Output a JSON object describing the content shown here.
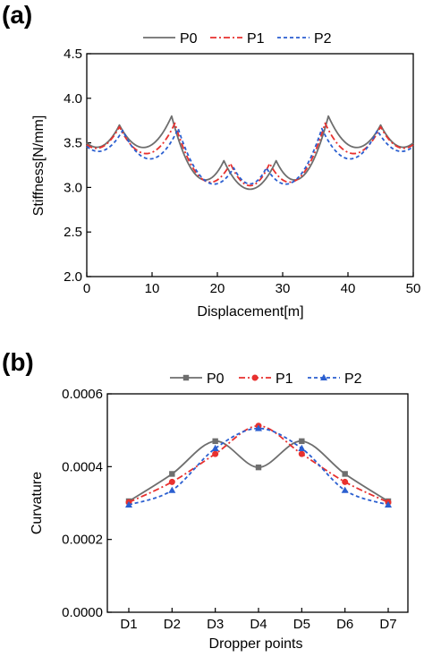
{
  "panels": [
    {
      "panel_label": "(a)",
      "legend": [
        {
          "name": "P0",
          "color": "#6e6e6e",
          "dash": "solid",
          "marker": "none"
        },
        {
          "name": "P1",
          "color": "#e8312f",
          "dash": "dashdot",
          "marker": "none"
        },
        {
          "name": "P2",
          "color": "#2b5fd0",
          "dash": "dash",
          "marker": "none"
        }
      ]
    },
    {
      "panel_label": "(b)",
      "legend": [
        {
          "name": "P0",
          "color": "#6e6e6e",
          "dash": "solid",
          "marker": "square"
        },
        {
          "name": "P1",
          "color": "#e8312f",
          "dash": "dashdot",
          "marker": "circle"
        },
        {
          "name": "P2",
          "color": "#2b5fd0",
          "dash": "dash",
          "marker": "triangle"
        }
      ]
    }
  ],
  "chart_data": [
    {
      "type": "line",
      "xlabel": "Displacement[m]",
      "ylabel": "Stiffness[N/mm]",
      "xlim": [
        0,
        50
      ],
      "ylim": [
        2.0,
        4.5
      ],
      "xticks": [
        0,
        10,
        20,
        30,
        40,
        50
      ],
      "xtick_labels": [
        "0",
        "10",
        "20",
        "30",
        "40",
        "50"
      ],
      "yticks": [
        2.0,
        2.5,
        3.0,
        3.5,
        4.0,
        4.5
      ],
      "ytick_labels": [
        "2.0",
        "2.5",
        "3.0",
        "3.5",
        "4.0",
        "4.5"
      ],
      "legend_position": "top",
      "series": [
        {
          "name": "P0",
          "color": "#6e6e6e",
          "dash": "solid",
          "knots": [
            [
              0,
              3.5
            ],
            [
              5,
              3.7
            ],
            [
              13,
              3.8
            ],
            [
              21,
              3.3
            ],
            [
              29,
              3.3
            ],
            [
              37,
              3.8
            ],
            [
              45,
              3.7
            ],
            [
              50,
              3.5
            ]
          ],
          "mins": [
            3.47,
            3.45,
            3.12,
            2.98,
            3.12,
            3.45,
            3.47
          ]
        },
        {
          "name": "P1",
          "color": "#e8312f",
          "dash": "dashdot",
          "knots": [
            [
              0,
              3.48
            ],
            [
              5,
              3.68
            ],
            [
              13.5,
              3.72
            ],
            [
              22,
              3.27
            ],
            [
              28,
              3.27
            ],
            [
              36.5,
              3.72
            ],
            [
              45,
              3.68
            ],
            [
              50,
              3.48
            ]
          ],
          "mins": [
            3.46,
            3.38,
            3.09,
            3.02,
            3.09,
            3.38,
            3.46
          ]
        },
        {
          "name": "P2",
          "color": "#2b5fd0",
          "dash": "dash",
          "knots": [
            [
              0,
              3.46
            ],
            [
              5.5,
              3.64
            ],
            [
              14,
              3.66
            ],
            [
              22.5,
              3.22
            ],
            [
              27.5,
              3.22
            ],
            [
              36,
              3.66
            ],
            [
              44.5,
              3.64
            ],
            [
              50,
              3.46
            ]
          ],
          "mins": [
            3.42,
            3.32,
            3.07,
            3.04,
            3.07,
            3.32,
            3.42
          ]
        }
      ]
    },
    {
      "type": "line",
      "xlabel": "Dropper points",
      "ylabel": "Curvature",
      "categories": [
        "D1",
        "D2",
        "D3",
        "D4",
        "D5",
        "D6",
        "D7"
      ],
      "ylim": [
        0.0,
        0.0006
      ],
      "yticks": [
        0.0,
        0.0002,
        0.0004,
        0.0006
      ],
      "ytick_labels": [
        "0.0000",
        "0.0002",
        "0.0004",
        "0.0006"
      ],
      "legend_position": "top",
      "series": [
        {
          "name": "P0",
          "color": "#6e6e6e",
          "dash": "solid",
          "marker": "square",
          "values": [
            0.000305,
            0.00038,
            0.00047,
            0.000398,
            0.00047,
            0.00038,
            0.000305
          ]
        },
        {
          "name": "P1",
          "color": "#e8312f",
          "dash": "dashdot",
          "marker": "circle",
          "values": [
            0.000302,
            0.000358,
            0.000435,
            0.000512,
            0.000435,
            0.000358,
            0.000302
          ]
        },
        {
          "name": "P2",
          "color": "#2b5fd0",
          "dash": "dash",
          "marker": "triangle",
          "values": [
            0.000295,
            0.000335,
            0.00045,
            0.000505,
            0.00045,
            0.000335,
            0.000295
          ]
        }
      ]
    }
  ]
}
